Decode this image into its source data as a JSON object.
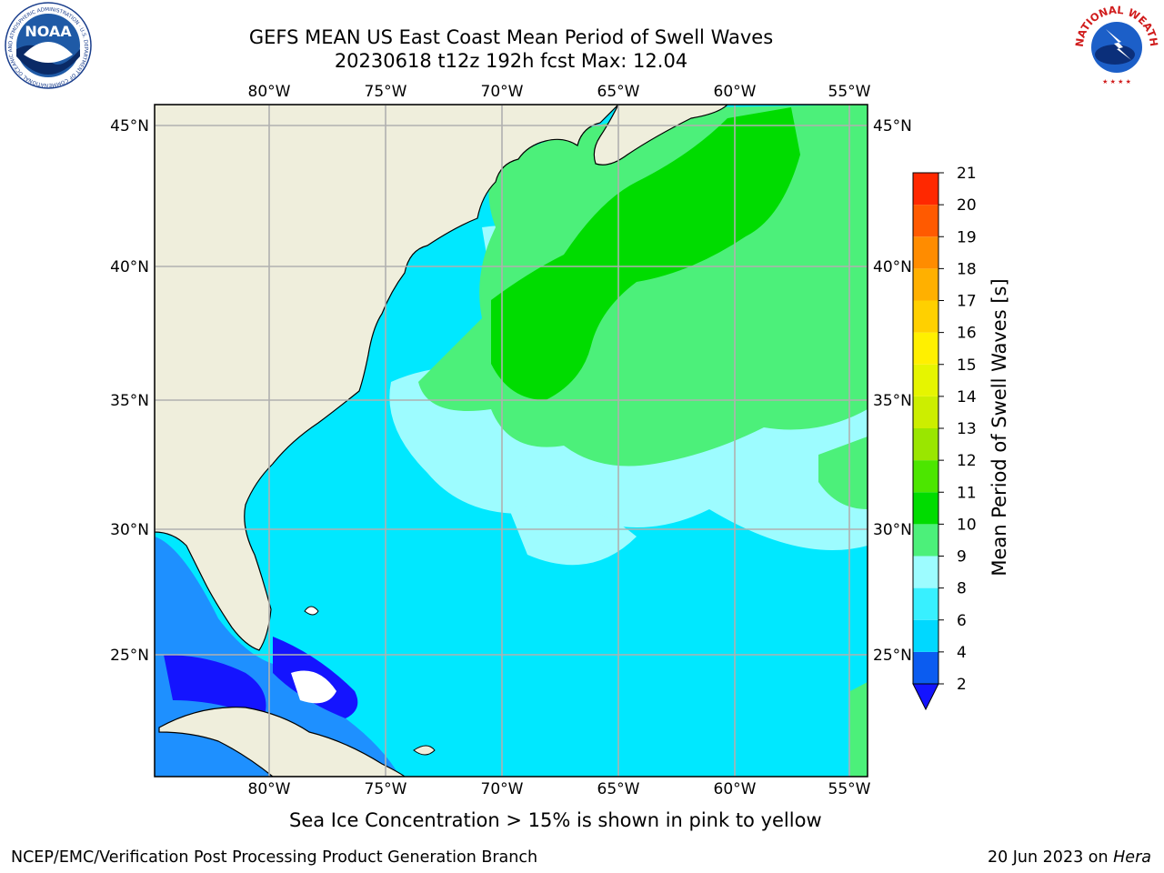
{
  "title": {
    "line1": "GEFS MEAN US East Coast Mean Period of Swell Waves",
    "line2": "20230618 t12z 192h fcst   Max: 12.04"
  },
  "map": {
    "lon_labels": [
      "80°W",
      "75°W",
      "70°W",
      "65°W",
      "60°W",
      "55°W"
    ],
    "lat_labels": [
      "45°N",
      "40°N",
      "35°N",
      "30°N",
      "25°N"
    ],
    "land_color": "#efeedc",
    "grid_color": "#b0b0b0"
  },
  "colorbar": {
    "label": "Mean Period of Swell Waves [s]",
    "ticks": [
      "2",
      "4",
      "6",
      "8",
      "9",
      "10",
      "11",
      "12",
      "13",
      "14",
      "15",
      "16",
      "17",
      "18",
      "19",
      "20",
      "21"
    ],
    "colors": [
      "#0b5cf0",
      "#00d8ff",
      "#38f0ff",
      "#9dfcff",
      "#4cf07a",
      "#00dc00",
      "#4ce600",
      "#9ae600",
      "#ccee00",
      "#e6f500",
      "#fff000",
      "#ffd000",
      "#ffb000",
      "#ff8c00",
      "#ff5a00",
      "#ff2800"
    ],
    "under_color": "#1414ff"
  },
  "footer": {
    "note": "Sea Ice Concentration > 15% is shown in pink to yellow",
    "credit": "NCEP/EMC/Verification Post Processing Product Generation Branch",
    "date": "20 Jun 2023 on ",
    "machine": "Hera"
  },
  "logos": {
    "noaa_text": "NOAA",
    "noaa_ring": "NATIONAL OCEANIC AND ATMOSPHERIC ADMINISTRATION · U.S. DEPARTMENT OF COMMERCE",
    "nws_ring": "NATIONAL WEATHER SERVICE"
  }
}
